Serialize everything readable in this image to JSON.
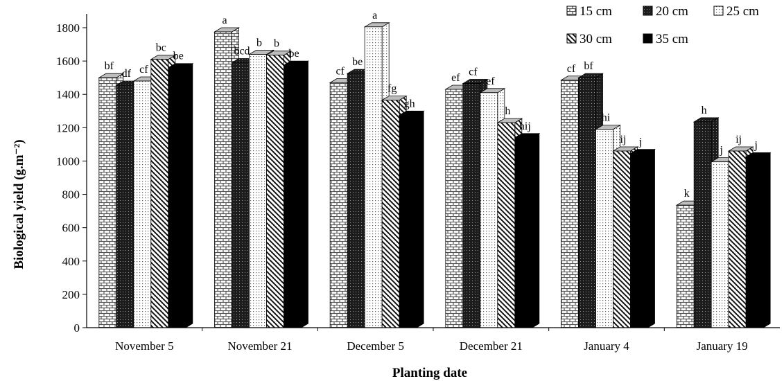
{
  "chart_data": {
    "type": "bar",
    "xlabel": "Planting date",
    "ylabel": "Biological yield (g.m⁻²)",
    "ylim": [
      0,
      1800
    ],
    "yticks": [
      0,
      200,
      400,
      600,
      800,
      1000,
      1200,
      1400,
      1600,
      1800
    ],
    "grid": false,
    "legend_position": "top-right",
    "categories": [
      "November 5",
      "November 21",
      "December 5",
      "December 21",
      "January 4",
      "January 19"
    ],
    "series": [
      {
        "name": "15 cm",
        "pattern": "brick",
        "values": [
          1500,
          1775,
          1470,
          1430,
          1485,
          735
        ],
        "labels": [
          "bf",
          "a",
          "cf",
          "ef",
          "cf",
          "k"
        ]
      },
      {
        "name": "20 cm",
        "pattern": "dark-dots",
        "values": [
          1455,
          1590,
          1525,
          1465,
          1500,
          1235
        ],
        "labels": [
          "df",
          "bcd",
          "be",
          "cf",
          "bf",
          "h"
        ]
      },
      {
        "name": "25 cm",
        "pattern": "light-dots",
        "values": [
          1480,
          1640,
          1805,
          1410,
          1190,
          995
        ],
        "labels": [
          "cf",
          "b",
          "a",
          "ef",
          "hi",
          "j"
        ]
      },
      {
        "name": "30 cm",
        "pattern": "diagonal",
        "values": [
          1610,
          1635,
          1365,
          1230,
          1060,
          1060
        ],
        "labels": [
          "bc",
          "b",
          "fg",
          "h",
          "ij",
          "ij"
        ]
      },
      {
        "name": "35 cm",
        "pattern": "solid",
        "values": [
          1560,
          1575,
          1275,
          1140,
          1045,
          1025
        ],
        "labels": [
          "be",
          "be",
          "gh",
          "hij",
          "j",
          "j"
        ]
      }
    ]
  }
}
